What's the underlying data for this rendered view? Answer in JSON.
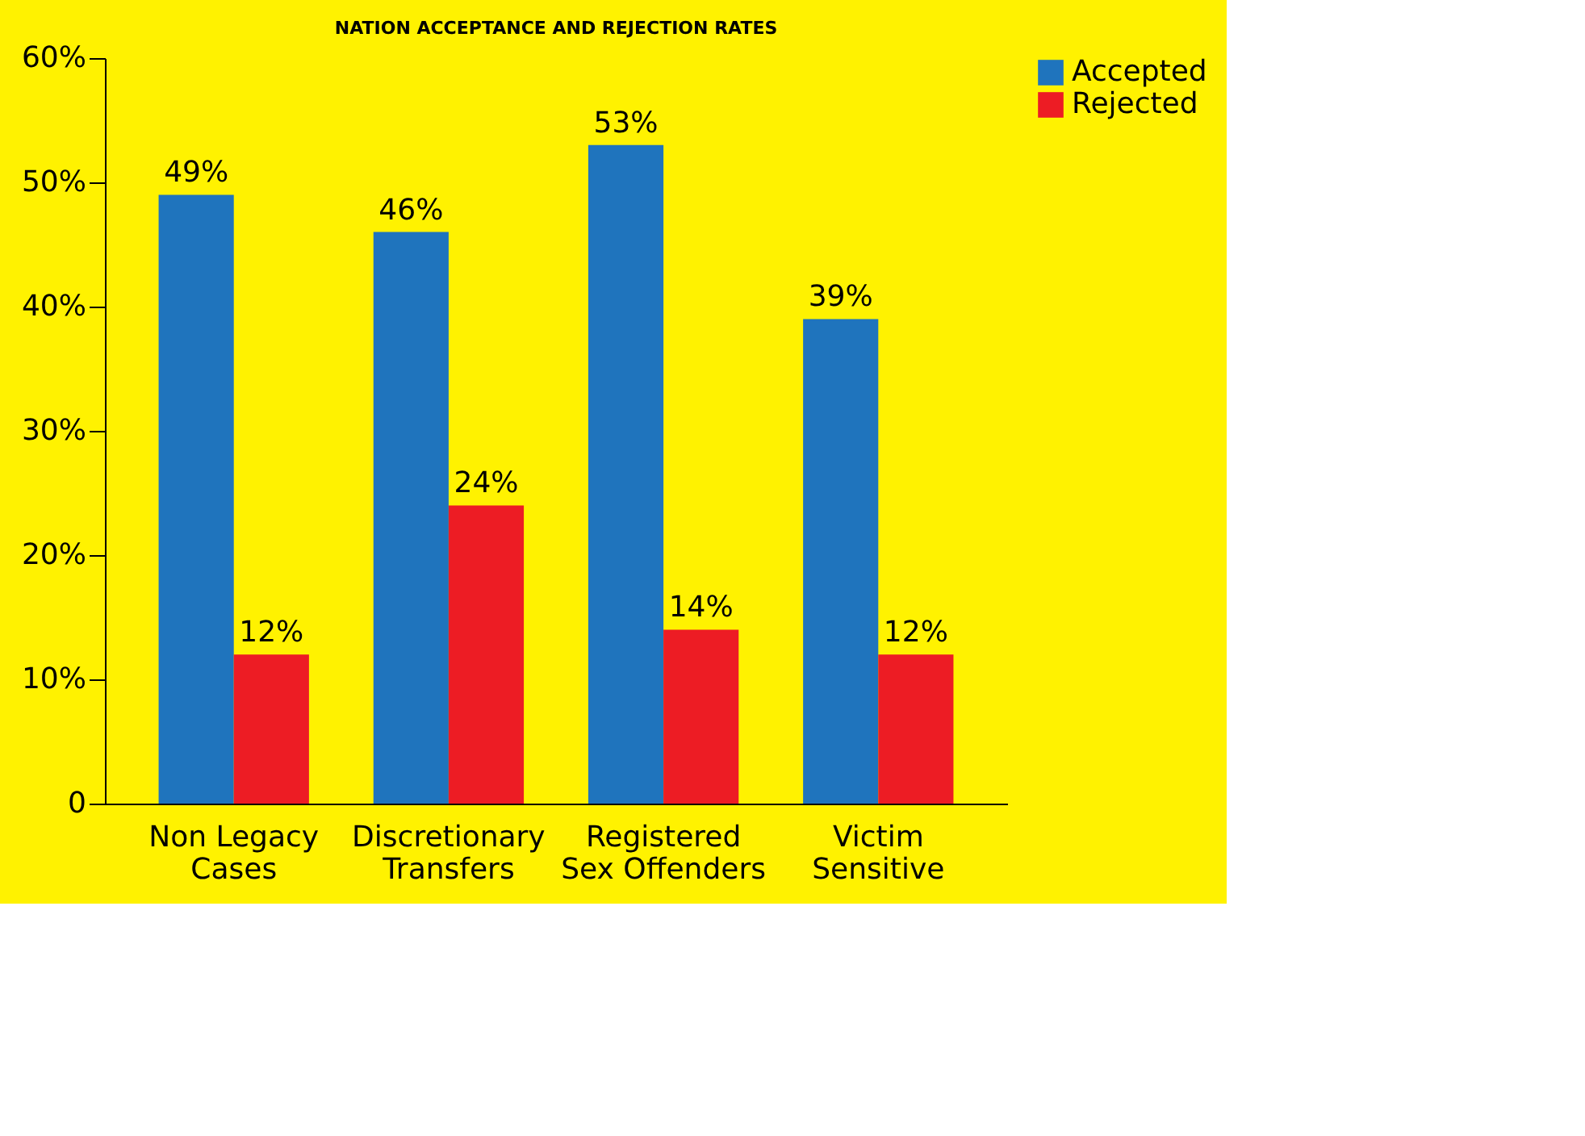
{
  "chart_data": {
    "type": "bar",
    "title": "NATION ACCEPTANCE AND REJECTION RATES",
    "categories": [
      "Non Legacy\nCases",
      "Discretionary\nTransfers",
      "Registered\nSex Offenders",
      "Victim\nSensitive"
    ],
    "series": [
      {
        "name": "Accepted",
        "color": "#1f74bd",
        "values": [
          49,
          46,
          53,
          39
        ],
        "value_labels": [
          "49%",
          "46%",
          "53%",
          "39%"
        ]
      },
      {
        "name": "Rejected",
        "color": "#ed1c24",
        "values": [
          12,
          24,
          14,
          12
        ],
        "value_labels": [
          "12%",
          "24%",
          "14%",
          "12%"
        ]
      }
    ],
    "ylim": [
      0,
      60
    ],
    "yticks": [
      0,
      {
        "value": 10,
        "label": "10%"
      },
      {
        "value": 20,
        "label": "20%"
      },
      {
        "value": 30,
        "label": "30%"
      },
      {
        "value": 40,
        "label": "40%"
      },
      {
        "value": 50,
        "label": "50%"
      },
      {
        "value": 60,
        "label": "60%"
      }
    ],
    "grid": false,
    "legend": "right"
  }
}
